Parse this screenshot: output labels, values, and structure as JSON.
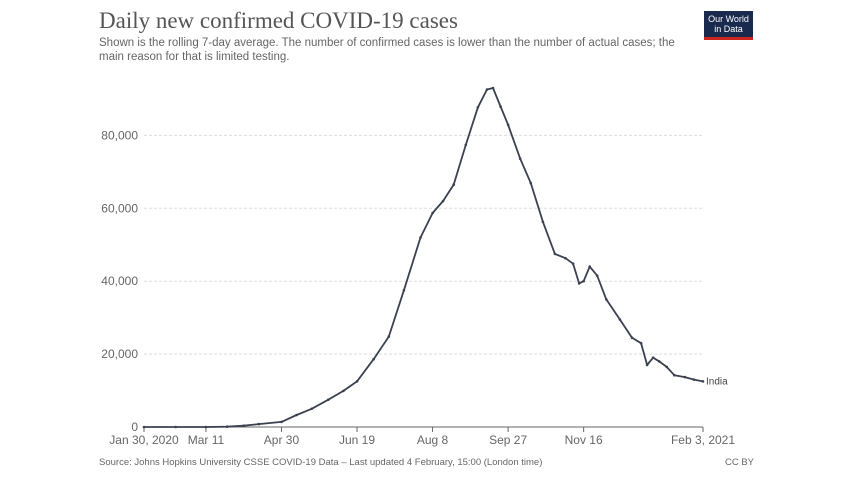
{
  "header": {
    "title": "Daily new confirmed COVID-19 cases",
    "subtitle": "Shown is the rolling 7-day average. The number of confirmed cases is lower than the number of actual cases; the main reason for that is limited testing."
  },
  "logo": {
    "line1": "Our World",
    "line2": "in Data"
  },
  "footer": {
    "source": "Source: Johns Hopkins University CSSE COVID-19 Data – Last updated 4 February, 15:00 (London time)",
    "license": "CC BY"
  },
  "colors": {
    "line": "#3a4150",
    "grid": "#dddddd",
    "axis": "#666666"
  },
  "chart_data": {
    "type": "line",
    "title": "Daily new confirmed COVID-19 cases",
    "xlabel": "",
    "ylabel": "",
    "x_range": [
      "2020-01-30",
      "2021-02-03"
    ],
    "ylim": [
      0,
      93000
    ],
    "y_ticks": [
      {
        "value": 0,
        "label": "0"
      },
      {
        "value": 20000,
        "label": "20,000"
      },
      {
        "value": 40000,
        "label": "40,000"
      },
      {
        "value": 60000,
        "label": "60,000"
      },
      {
        "value": 80000,
        "label": "80,000"
      }
    ],
    "x_ticks": [
      {
        "date": "2020-01-30",
        "label": "Jan 30, 2020"
      },
      {
        "date": "2020-03-11",
        "label": "Mar 11"
      },
      {
        "date": "2020-04-30",
        "label": "Apr 30"
      },
      {
        "date": "2020-06-19",
        "label": "Jun 19"
      },
      {
        "date": "2020-08-08",
        "label": "Aug 8"
      },
      {
        "date": "2020-09-27",
        "label": "Sep 27"
      },
      {
        "date": "2020-11-16",
        "label": "Nov 16"
      },
      {
        "date": "2021-02-03",
        "label": "Feb 3, 2021"
      }
    ],
    "grid": true,
    "series": [
      {
        "name": "India",
        "points": [
          [
            "2020-01-30",
            0
          ],
          [
            "2020-02-20",
            0
          ],
          [
            "2020-03-11",
            10
          ],
          [
            "2020-03-25",
            80
          ],
          [
            "2020-04-05",
            350
          ],
          [
            "2020-04-15",
            800
          ],
          [
            "2020-04-30",
            1400
          ],
          [
            "2020-05-10",
            3300
          ],
          [
            "2020-05-20",
            5000
          ],
          [
            "2020-05-31",
            7500
          ],
          [
            "2020-06-10",
            9900
          ],
          [
            "2020-06-19",
            12500
          ],
          [
            "2020-06-30",
            18600
          ],
          [
            "2020-07-10",
            24800
          ],
          [
            "2020-07-20",
            37500
          ],
          [
            "2020-07-31",
            52000
          ],
          [
            "2020-08-08",
            58700
          ],
          [
            "2020-08-15",
            62000
          ],
          [
            "2020-08-22",
            66500
          ],
          [
            "2020-08-30",
            77400
          ],
          [
            "2020-09-07",
            87700
          ],
          [
            "2020-09-13",
            92600
          ],
          [
            "2020-09-17",
            93000
          ],
          [
            "2020-09-22",
            87900
          ],
          [
            "2020-09-27",
            82900
          ],
          [
            "2020-10-05",
            73600
          ],
          [
            "2020-10-12",
            66900
          ],
          [
            "2020-10-20",
            56300
          ],
          [
            "2020-10-28",
            47500
          ],
          [
            "2020-11-04",
            46300
          ],
          [
            "2020-11-09",
            44800
          ],
          [
            "2020-11-13",
            39400
          ],
          [
            "2020-11-16",
            40000
          ],
          [
            "2020-11-20",
            44000
          ],
          [
            "2020-11-25",
            41500
          ],
          [
            "2020-12-01",
            35000
          ],
          [
            "2020-12-10",
            29500
          ],
          [
            "2020-12-18",
            24500
          ],
          [
            "2020-12-24",
            23000
          ],
          [
            "2020-12-28",
            17000
          ],
          [
            "2021-01-01",
            19000
          ],
          [
            "2021-01-05",
            18000
          ],
          [
            "2021-01-10",
            16500
          ],
          [
            "2021-01-15",
            14200
          ],
          [
            "2021-01-22",
            13700
          ],
          [
            "2021-01-28",
            13000
          ],
          [
            "2021-02-03",
            12500
          ]
        ]
      }
    ]
  }
}
